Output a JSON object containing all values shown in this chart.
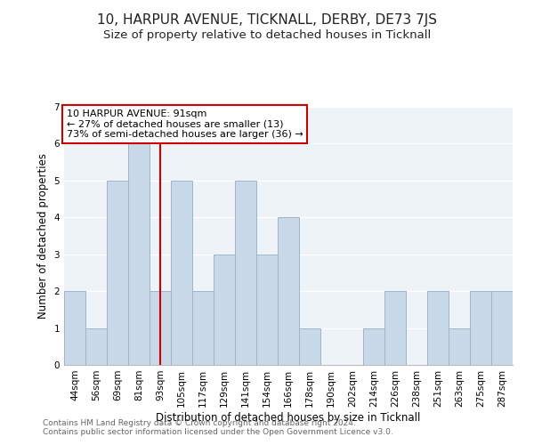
{
  "title": "10, HARPUR AVENUE, TICKNALL, DERBY, DE73 7JS",
  "subtitle": "Size of property relative to detached houses in Ticknall",
  "xlabel": "Distribution of detached houses by size in Ticknall",
  "ylabel": "Number of detached properties",
  "footer_line1": "Contains HM Land Registry data © Crown copyright and database right 2024.",
  "footer_line2": "Contains public sector information licensed under the Open Government Licence v3.0.",
  "bar_labels": [
    "44sqm",
    "56sqm",
    "69sqm",
    "81sqm",
    "93sqm",
    "105sqm",
    "117sqm",
    "129sqm",
    "141sqm",
    "154sqm",
    "166sqm",
    "178sqm",
    "190sqm",
    "202sqm",
    "214sqm",
    "226sqm",
    "238sqm",
    "251sqm",
    "263sqm",
    "275sqm",
    "287sqm"
  ],
  "bar_values": [
    2,
    1,
    5,
    6,
    2,
    5,
    2,
    3,
    5,
    3,
    4,
    1,
    0,
    0,
    1,
    2,
    0,
    2,
    1,
    2,
    2
  ],
  "bar_color": "#c9d9e8",
  "bar_edgecolor": "#9ab5cc",
  "redline_index": 4,
  "ylim": [
    0,
    7
  ],
  "yticks": [
    0,
    1,
    2,
    3,
    4,
    5,
    6,
    7
  ],
  "annotation_title": "10 HARPUR AVENUE: 91sqm",
  "annotation_line1": "← 27% of detached houses are smaller (13)",
  "annotation_line2": "73% of semi-detached houses are larger (36) →",
  "annotation_box_color": "#ffffff",
  "annotation_box_edgecolor": "#cc0000",
  "background_color": "#ffffff",
  "plot_background": "#eef3f8",
  "title_fontsize": 11,
  "subtitle_fontsize": 9.5,
  "axis_label_fontsize": 8.5,
  "tick_fontsize": 7.5,
  "annotation_fontsize": 8,
  "footer_fontsize": 6.5
}
